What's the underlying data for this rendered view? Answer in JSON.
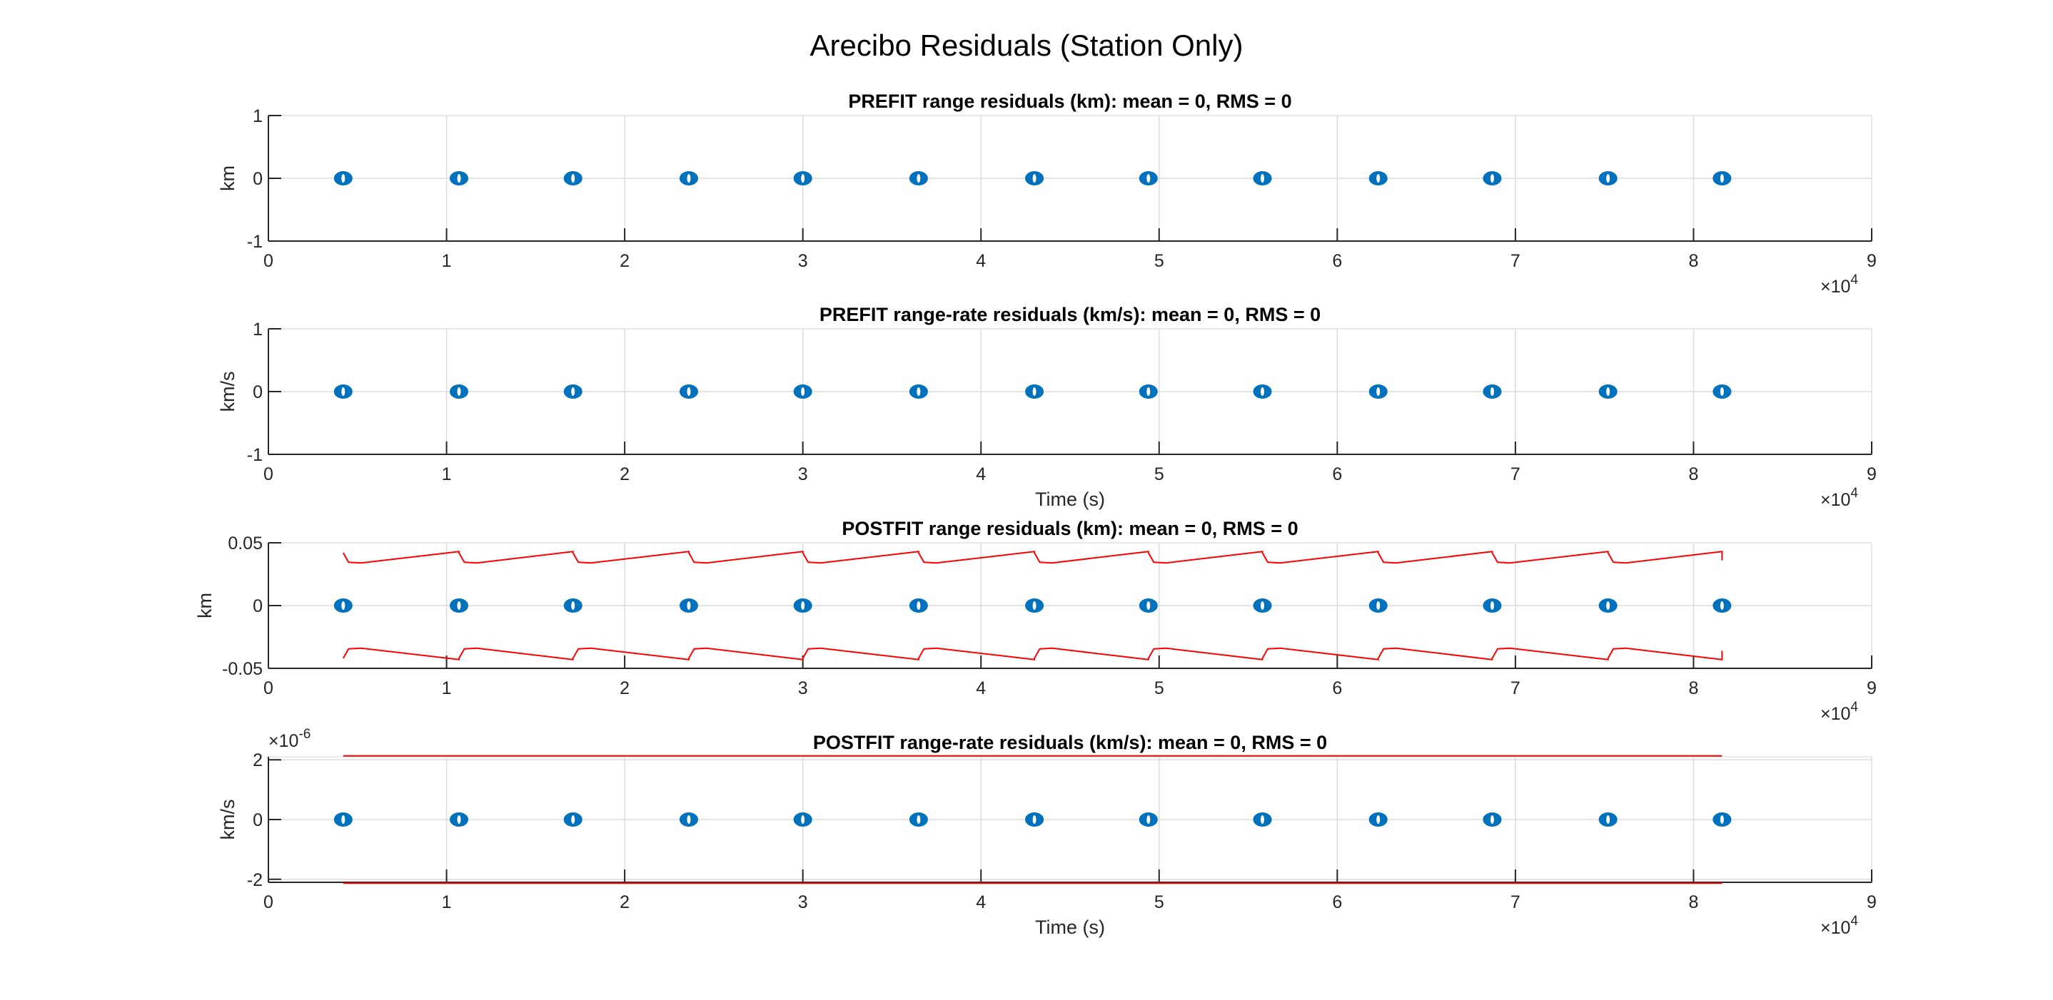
{
  "figure": {
    "title": "Arecibo Residuals (Station Only)"
  },
  "colors": {
    "marker": "#0072BD",
    "envelope": "#FF0000",
    "axis": "#262626",
    "grid": "#DCDCDC"
  },
  "chart_data": [
    {
      "type": "scatter",
      "title": "PREFIT range residuals (km): mean = 0, RMS = 0",
      "xlabel": "",
      "ylabel": "km",
      "xlim": [
        0,
        90000
      ],
      "ylim": [
        -1,
        1
      ],
      "x_tick_labels": [
        "0",
        "1",
        "2",
        "3",
        "4",
        "5",
        "6",
        "7",
        "8",
        "9"
      ],
      "x_exponent": "4",
      "y_ticks": [
        -1,
        0,
        1
      ],
      "y_tick_labels": [
        "-1",
        "0",
        "1"
      ],
      "y_exponent": "",
      "grid": true,
      "series": [
        {
          "kind": "markers",
          "x": [
            4200,
            10700,
            17100,
            23600,
            30000,
            36500,
            43000,
            49400,
            55800,
            62300,
            68700,
            75200,
            81600
          ],
          "y": [
            0,
            0,
            0,
            0,
            0,
            0,
            0,
            0,
            0,
            0,
            0,
            0,
            0
          ]
        }
      ]
    },
    {
      "type": "scatter",
      "title": "PREFIT range-rate residuals (km/s): mean = 0, RMS = 0",
      "xlabel": "Time (s)",
      "ylabel": "km/s",
      "xlim": [
        0,
        90000
      ],
      "ylim": [
        -1,
        1
      ],
      "x_tick_labels": [
        "0",
        "1",
        "2",
        "3",
        "4",
        "5",
        "6",
        "7",
        "8",
        "9"
      ],
      "x_exponent": "4",
      "y_ticks": [
        -1,
        0,
        1
      ],
      "y_tick_labels": [
        "-1",
        "0",
        "1"
      ],
      "y_exponent": "",
      "grid": true,
      "series": [
        {
          "kind": "markers",
          "x": [
            4200,
            10700,
            17100,
            23600,
            30000,
            36500,
            43000,
            49400,
            55800,
            62300,
            68700,
            75200,
            81600
          ],
          "y": [
            0,
            0,
            0,
            0,
            0,
            0,
            0,
            0,
            0,
            0,
            0,
            0,
            0
          ]
        }
      ]
    },
    {
      "type": "scatter",
      "title": "POSTFIT range residuals (km): mean = 0, RMS = 0",
      "xlabel": "",
      "ylabel": "km",
      "xlim": [
        0,
        90000
      ],
      "ylim": [
        -0.05,
        0.05
      ],
      "x_tick_labels": [
        "0",
        "1",
        "2",
        "3",
        "4",
        "5",
        "6",
        "7",
        "8",
        "9"
      ],
      "x_exponent": "4",
      "y_ticks": [
        -0.05,
        0,
        0.05
      ],
      "y_tick_labels": [
        "-0.05",
        "0",
        "0.05"
      ],
      "y_exponent": "",
      "grid": true,
      "series": [
        {
          "kind": "markers",
          "x": [
            4200,
            10700,
            17100,
            23600,
            30000,
            36500,
            43000,
            49400,
            55800,
            62300,
            68700,
            75200,
            81600
          ],
          "y": [
            0,
            0,
            0,
            0,
            0,
            0,
            0,
            0,
            0,
            0,
            0,
            0,
            0
          ]
        },
        {
          "kind": "sawtooth",
          "starts": [
            4200,
            10700,
            17100,
            23600,
            30000,
            36500,
            43000,
            49400,
            55800,
            62300,
            68700,
            75200
          ],
          "end": 81600,
          "peak": 0.042,
          "low": 0.034,
          "ramp_end": 0.043
        }
      ]
    },
    {
      "type": "scatter",
      "title": "POSTFIT range-rate residuals (km/s): mean = 0, RMS = 0",
      "xlabel": "Time (s)",
      "ylabel": "km/s",
      "xlim": [
        0,
        90000
      ],
      "ylim": [
        -2.1,
        2.1
      ],
      "x_tick_labels": [
        "0",
        "1",
        "2",
        "3",
        "4",
        "5",
        "6",
        "7",
        "8",
        "9"
      ],
      "x_exponent": "4",
      "y_ticks": [
        -2,
        0,
        2
      ],
      "y_tick_labels": [
        "-2",
        "0",
        "2"
      ],
      "y_exponent": "-6",
      "grid": true,
      "series": [
        {
          "kind": "markers",
          "x": [
            4200,
            10700,
            17100,
            23600,
            30000,
            36500,
            43000,
            49400,
            55800,
            62300,
            68700,
            75200,
            81600
          ],
          "y": [
            0,
            0,
            0,
            0,
            0,
            0,
            0,
            0,
            0,
            0,
            0,
            0,
            0
          ]
        },
        {
          "kind": "hline",
          "x": [
            4200,
            81600
          ],
          "y": 2.13
        },
        {
          "kind": "hline",
          "x": [
            4200,
            81600
          ],
          "y": -2.13
        }
      ]
    }
  ]
}
